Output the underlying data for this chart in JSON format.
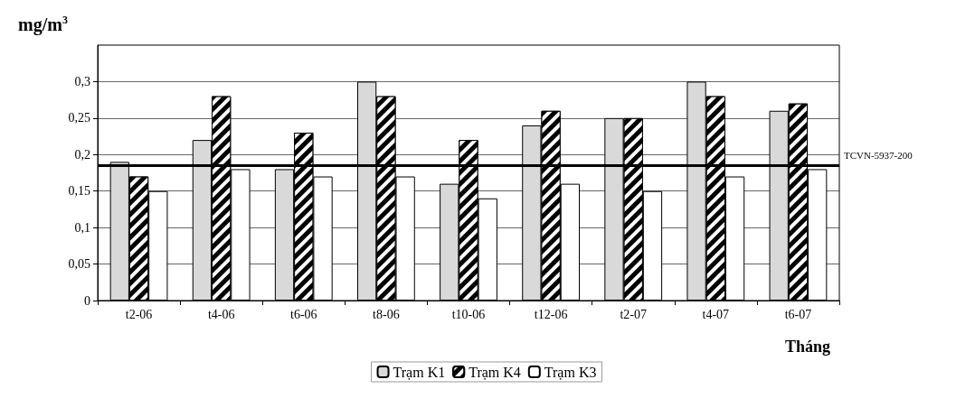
{
  "chart_data": {
    "type": "bar",
    "ylabel": "mg/m$^{3}$",
    "xlabel": "Tháng",
    "categories": [
      "t2-06",
      "t4-06",
      "t6-06",
      "t8-06",
      "t10-06",
      "t12-06",
      "t2-07",
      "t4-07",
      "t6-07"
    ],
    "series": [
      {
        "name": "Trạm K1",
        "color": "#d9d9d9",
        "values": [
          0.19,
          0.22,
          0.18,
          0.3,
          0.16,
          0.24,
          0.25,
          0.3,
          0.26
        ]
      },
      {
        "name": "Trạm K4",
        "color": "#000000",
        "values": [
          0.17,
          0.28,
          0.23,
          0.28,
          0.22,
          0.26,
          0.25,
          0.28,
          0.27
        ]
      },
      {
        "name": "Trạm K3",
        "color": "#ffffff",
        "values": [
          0.15,
          0.18,
          0.17,
          0.17,
          0.14,
          0.16,
          0.15,
          0.17,
          0.18
        ]
      }
    ],
    "ylim": [
      0,
      0.35
    ],
    "yticks": [
      0,
      {
        "value": 0.05,
        "label": "0,05"
      },
      {
        "value": 0.1,
        "label": "0,1"
      },
      {
        "value": 0.15,
        "label": "0,15"
      },
      {
        "value": 0.2,
        "label": "0,2"
      },
      {
        "value": 0.25,
        "label": "0,25"
      },
      {
        "value": 0.3,
        "label": "0,3"
      }
    ],
    "ref_lines": [
      {
        "axis": "y",
        "value": 0.185,
        "label": "TCVN-5937-200",
        "color": "#000000"
      }
    ],
    "grid": "y",
    "legend": "bottom"
  }
}
